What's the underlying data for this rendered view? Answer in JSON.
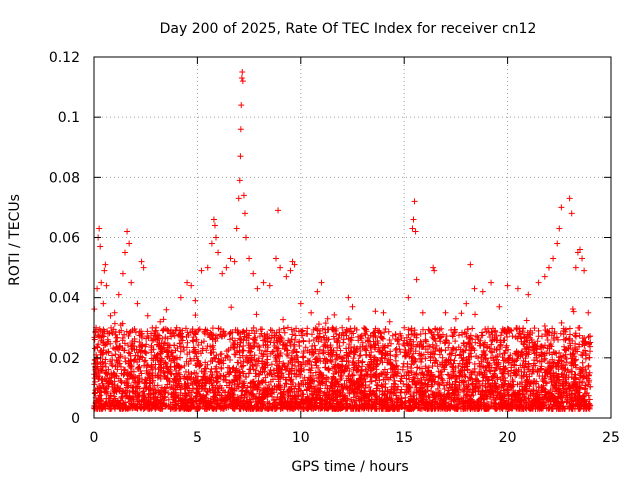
{
  "chart_data": {
    "type": "scatter",
    "title": "Day 200 of 2025, Rate Of TEC Index for receiver cn12",
    "xlabel": "GPS time / hours",
    "ylabel": "ROTI / TECUs",
    "xlim": [
      0,
      25
    ],
    "ylim": [
      0,
      0.12
    ],
    "xticks": [
      0,
      5,
      10,
      15,
      20,
      25
    ],
    "xtick_labels": [
      "0",
      "5",
      "10",
      "15",
      "20",
      "25"
    ],
    "yticks": [
      0,
      0.02,
      0.04,
      0.06,
      0.08,
      0.1,
      0.12
    ],
    "ytick_labels": [
      "0",
      "0.02",
      "0.04",
      "0.06",
      "0.08",
      "0.1",
      "0.12"
    ],
    "grid": true,
    "legend": "none",
    "marker": "plus",
    "color": "#ff0000",
    "baseline": {
      "x_range": [
        0,
        24
      ],
      "typical_y_range": [
        0.003,
        0.03
      ]
    },
    "series": [
      {
        "points": [
          [
            0.05,
            0.012
          ],
          [
            0.1,
            0.03
          ],
          [
            0.15,
            0.043
          ],
          [
            0.2,
            0.06
          ],
          [
            0.25,
            0.063
          ],
          [
            0.3,
            0.057
          ],
          [
            0.35,
            0.045
          ],
          [
            0.45,
            0.038
          ],
          [
            0.5,
            0.049
          ],
          [
            0.55,
            0.051
          ],
          [
            0.6,
            0.044
          ],
          [
            0.8,
            0.034
          ],
          [
            1.0,
            0.035
          ],
          [
            1.2,
            0.041
          ],
          [
            1.4,
            0.048
          ],
          [
            1.5,
            0.055
          ],
          [
            1.6,
            0.062
          ],
          [
            1.7,
            0.058
          ],
          [
            1.8,
            0.045
          ],
          [
            2.1,
            0.038
          ],
          [
            2.3,
            0.052
          ],
          [
            2.4,
            0.05
          ],
          [
            2.6,
            0.034
          ],
          [
            3.0,
            0.03
          ],
          [
            3.2,
            0.032
          ],
          [
            3.5,
            0.036
          ],
          [
            4.0,
            0.03
          ],
          [
            4.2,
            0.04
          ],
          [
            4.5,
            0.045
          ],
          [
            4.7,
            0.044
          ],
          [
            4.9,
            0.039
          ],
          [
            5.2,
            0.049
          ],
          [
            5.5,
            0.05
          ],
          [
            5.7,
            0.058
          ],
          [
            5.8,
            0.066
          ],
          [
            5.85,
            0.064
          ],
          [
            5.9,
            0.06
          ],
          [
            6.0,
            0.055
          ],
          [
            6.2,
            0.048
          ],
          [
            6.4,
            0.05
          ],
          [
            6.6,
            0.053
          ],
          [
            6.8,
            0.052
          ],
          [
            6.9,
            0.063
          ],
          [
            7.0,
            0.073
          ],
          [
            7.05,
            0.079
          ],
          [
            7.08,
            0.087
          ],
          [
            7.1,
            0.096
          ],
          [
            7.12,
            0.104
          ],
          [
            7.15,
            0.113
          ],
          [
            7.17,
            0.115
          ],
          [
            7.2,
            0.112
          ],
          [
            7.25,
            0.074
          ],
          [
            7.3,
            0.068
          ],
          [
            7.35,
            0.06
          ],
          [
            7.5,
            0.053
          ],
          [
            7.7,
            0.048
          ],
          [
            7.9,
            0.043
          ],
          [
            8.2,
            0.045
          ],
          [
            8.5,
            0.044
          ],
          [
            8.8,
            0.053
          ],
          [
            8.9,
            0.069
          ],
          [
            9.0,
            0.05
          ],
          [
            9.3,
            0.047
          ],
          [
            9.5,
            0.049
          ],
          [
            9.6,
            0.052
          ],
          [
            9.7,
            0.051
          ],
          [
            10.0,
            0.038
          ],
          [
            10.5,
            0.035
          ],
          [
            10.8,
            0.042
          ],
          [
            11.0,
            0.045
          ],
          [
            11.3,
            0.033
          ],
          [
            12.0,
            0.03
          ],
          [
            12.3,
            0.04
          ],
          [
            12.5,
            0.037
          ],
          [
            13.0,
            0.025
          ],
          [
            13.5,
            0.027
          ],
          [
            14.0,
            0.035
          ],
          [
            14.3,
            0.032
          ],
          [
            14.8,
            0.028
          ],
          [
            15.0,
            0.03
          ],
          [
            15.2,
            0.04
          ],
          [
            15.4,
            0.063
          ],
          [
            15.45,
            0.066
          ],
          [
            15.5,
            0.072
          ],
          [
            15.55,
            0.062
          ],
          [
            15.6,
            0.046
          ],
          [
            15.9,
            0.035
          ],
          [
            16.4,
            0.05
          ],
          [
            16.45,
            0.049
          ],
          [
            17.0,
            0.035
          ],
          [
            17.5,
            0.033
          ],
          [
            18.0,
            0.038
          ],
          [
            18.2,
            0.051
          ],
          [
            18.4,
            0.043
          ],
          [
            18.8,
            0.042
          ],
          [
            19.2,
            0.045
          ],
          [
            19.6,
            0.037
          ],
          [
            20.0,
            0.044
          ],
          [
            20.5,
            0.043
          ],
          [
            21.0,
            0.041
          ],
          [
            21.5,
            0.045
          ],
          [
            21.8,
            0.047
          ],
          [
            22.0,
            0.05
          ],
          [
            22.2,
            0.053
          ],
          [
            22.4,
            0.058
          ],
          [
            22.5,
            0.063
          ],
          [
            22.6,
            0.07
          ],
          [
            23.0,
            0.073
          ],
          [
            23.1,
            0.068
          ],
          [
            23.3,
            0.05
          ],
          [
            23.4,
            0.055
          ],
          [
            23.5,
            0.056
          ],
          [
            23.6,
            0.053
          ],
          [
            23.7,
            0.049
          ],
          [
            23.9,
            0.035
          ]
        ]
      }
    ]
  }
}
